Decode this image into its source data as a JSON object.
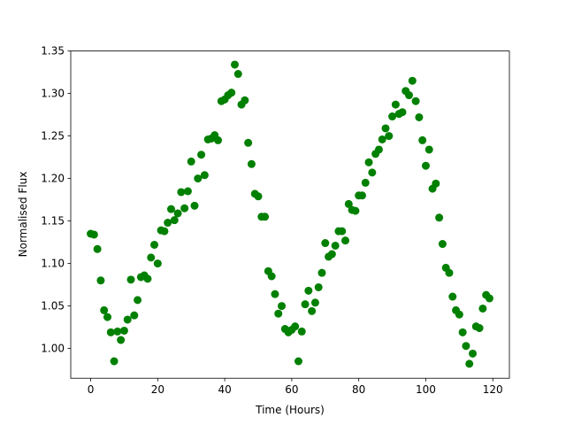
{
  "chart_data": {
    "type": "scatter",
    "x_label": "Time (Hours)",
    "y_label": "Normalised Flux",
    "series": [
      {
        "color": "#008000",
        "x": [
          0,
          1,
          2,
          3,
          4,
          5,
          6,
          7,
          8,
          9,
          10,
          11,
          12,
          13,
          14,
          15,
          16,
          17,
          18,
          19,
          20,
          21,
          22,
          23,
          24,
          25,
          26,
          27,
          28,
          29,
          30,
          31,
          32,
          33,
          34,
          35,
          36,
          37,
          38,
          39,
          40,
          41,
          42,
          43,
          44,
          45,
          46,
          47,
          48,
          49,
          50,
          51,
          52,
          53,
          54,
          55,
          56,
          57,
          58,
          59,
          60,
          61,
          62,
          63,
          64,
          65,
          66,
          67,
          68,
          69,
          70,
          71,
          72,
          73,
          74,
          75,
          76,
          77,
          78,
          79,
          80,
          81,
          82,
          83,
          84,
          85,
          86,
          87,
          88,
          89,
          90,
          91,
          92,
          93,
          94,
          95,
          96,
          97,
          98,
          99,
          100,
          101,
          102,
          103,
          104,
          105,
          106,
          107,
          108,
          109,
          110,
          111,
          112,
          113,
          114,
          115,
          116,
          117,
          118,
          119
        ],
        "values": [
          1.135,
          1.134,
          1.117,
          1.08,
          1.045,
          1.037,
          1.019,
          0.985,
          1.02,
          1.01,
          1.021,
          1.034,
          1.081,
          1.039,
          1.057,
          1.084,
          1.086,
          1.082,
          1.107,
          1.122,
          1.1,
          1.139,
          1.138,
          1.148,
          1.164,
          1.151,
          1.159,
          1.184,
          1.165,
          1.185,
          1.22,
          1.168,
          1.2,
          1.228,
          1.204,
          1.246,
          1.247,
          1.251,
          1.245,
          1.291,
          1.293,
          1.298,
          1.301,
          1.334,
          1.323,
          1.287,
          1.292,
          1.242,
          1.217,
          1.182,
          1.179,
          1.155,
          1.155,
          1.091,
          1.085,
          1.064,
          1.041,
          1.05,
          1.023,
          1.019,
          1.022,
          1.026,
          0.985,
          1.02,
          1.052,
          1.068,
          1.044,
          1.054,
          1.072,
          1.089,
          1.124,
          1.108,
          1.111,
          1.121,
          1.138,
          1.138,
          1.127,
          1.17,
          1.163,
          1.162,
          1.18,
          1.18,
          1.195,
          1.219,
          1.207,
          1.229,
          1.234,
          1.246,
          1.259,
          1.25,
          1.273,
          1.287,
          1.276,
          1.278,
          1.303,
          1.298,
          1.315,
          1.291,
          1.272,
          1.245,
          1.215,
          1.234,
          1.188,
          1.194,
          1.154,
          1.123,
          1.095,
          1.089,
          1.061,
          1.045,
          1.04,
          1.019,
          1.003,
          0.982,
          0.994,
          1.026,
          1.024,
          1.047,
          1.063,
          1.059
        ]
      }
    ],
    "xlim": [
      -5.95,
      124.95
    ],
    "xticks": [
      0,
      20,
      40,
      60,
      80,
      100,
      120
    ],
    "ylim": [
      0.965,
      1.35
    ],
    "yticks": [
      {
        "value": 1.0,
        "label": "1.00"
      },
      1.05,
      {
        "value": 1.1,
        "label": "1.10"
      },
      1.15,
      {
        "value": 1.2,
        "label": "1.20"
      },
      1.25,
      {
        "value": 1.3,
        "label": "1.30"
      },
      1.35
    ],
    "grid": false
  }
}
